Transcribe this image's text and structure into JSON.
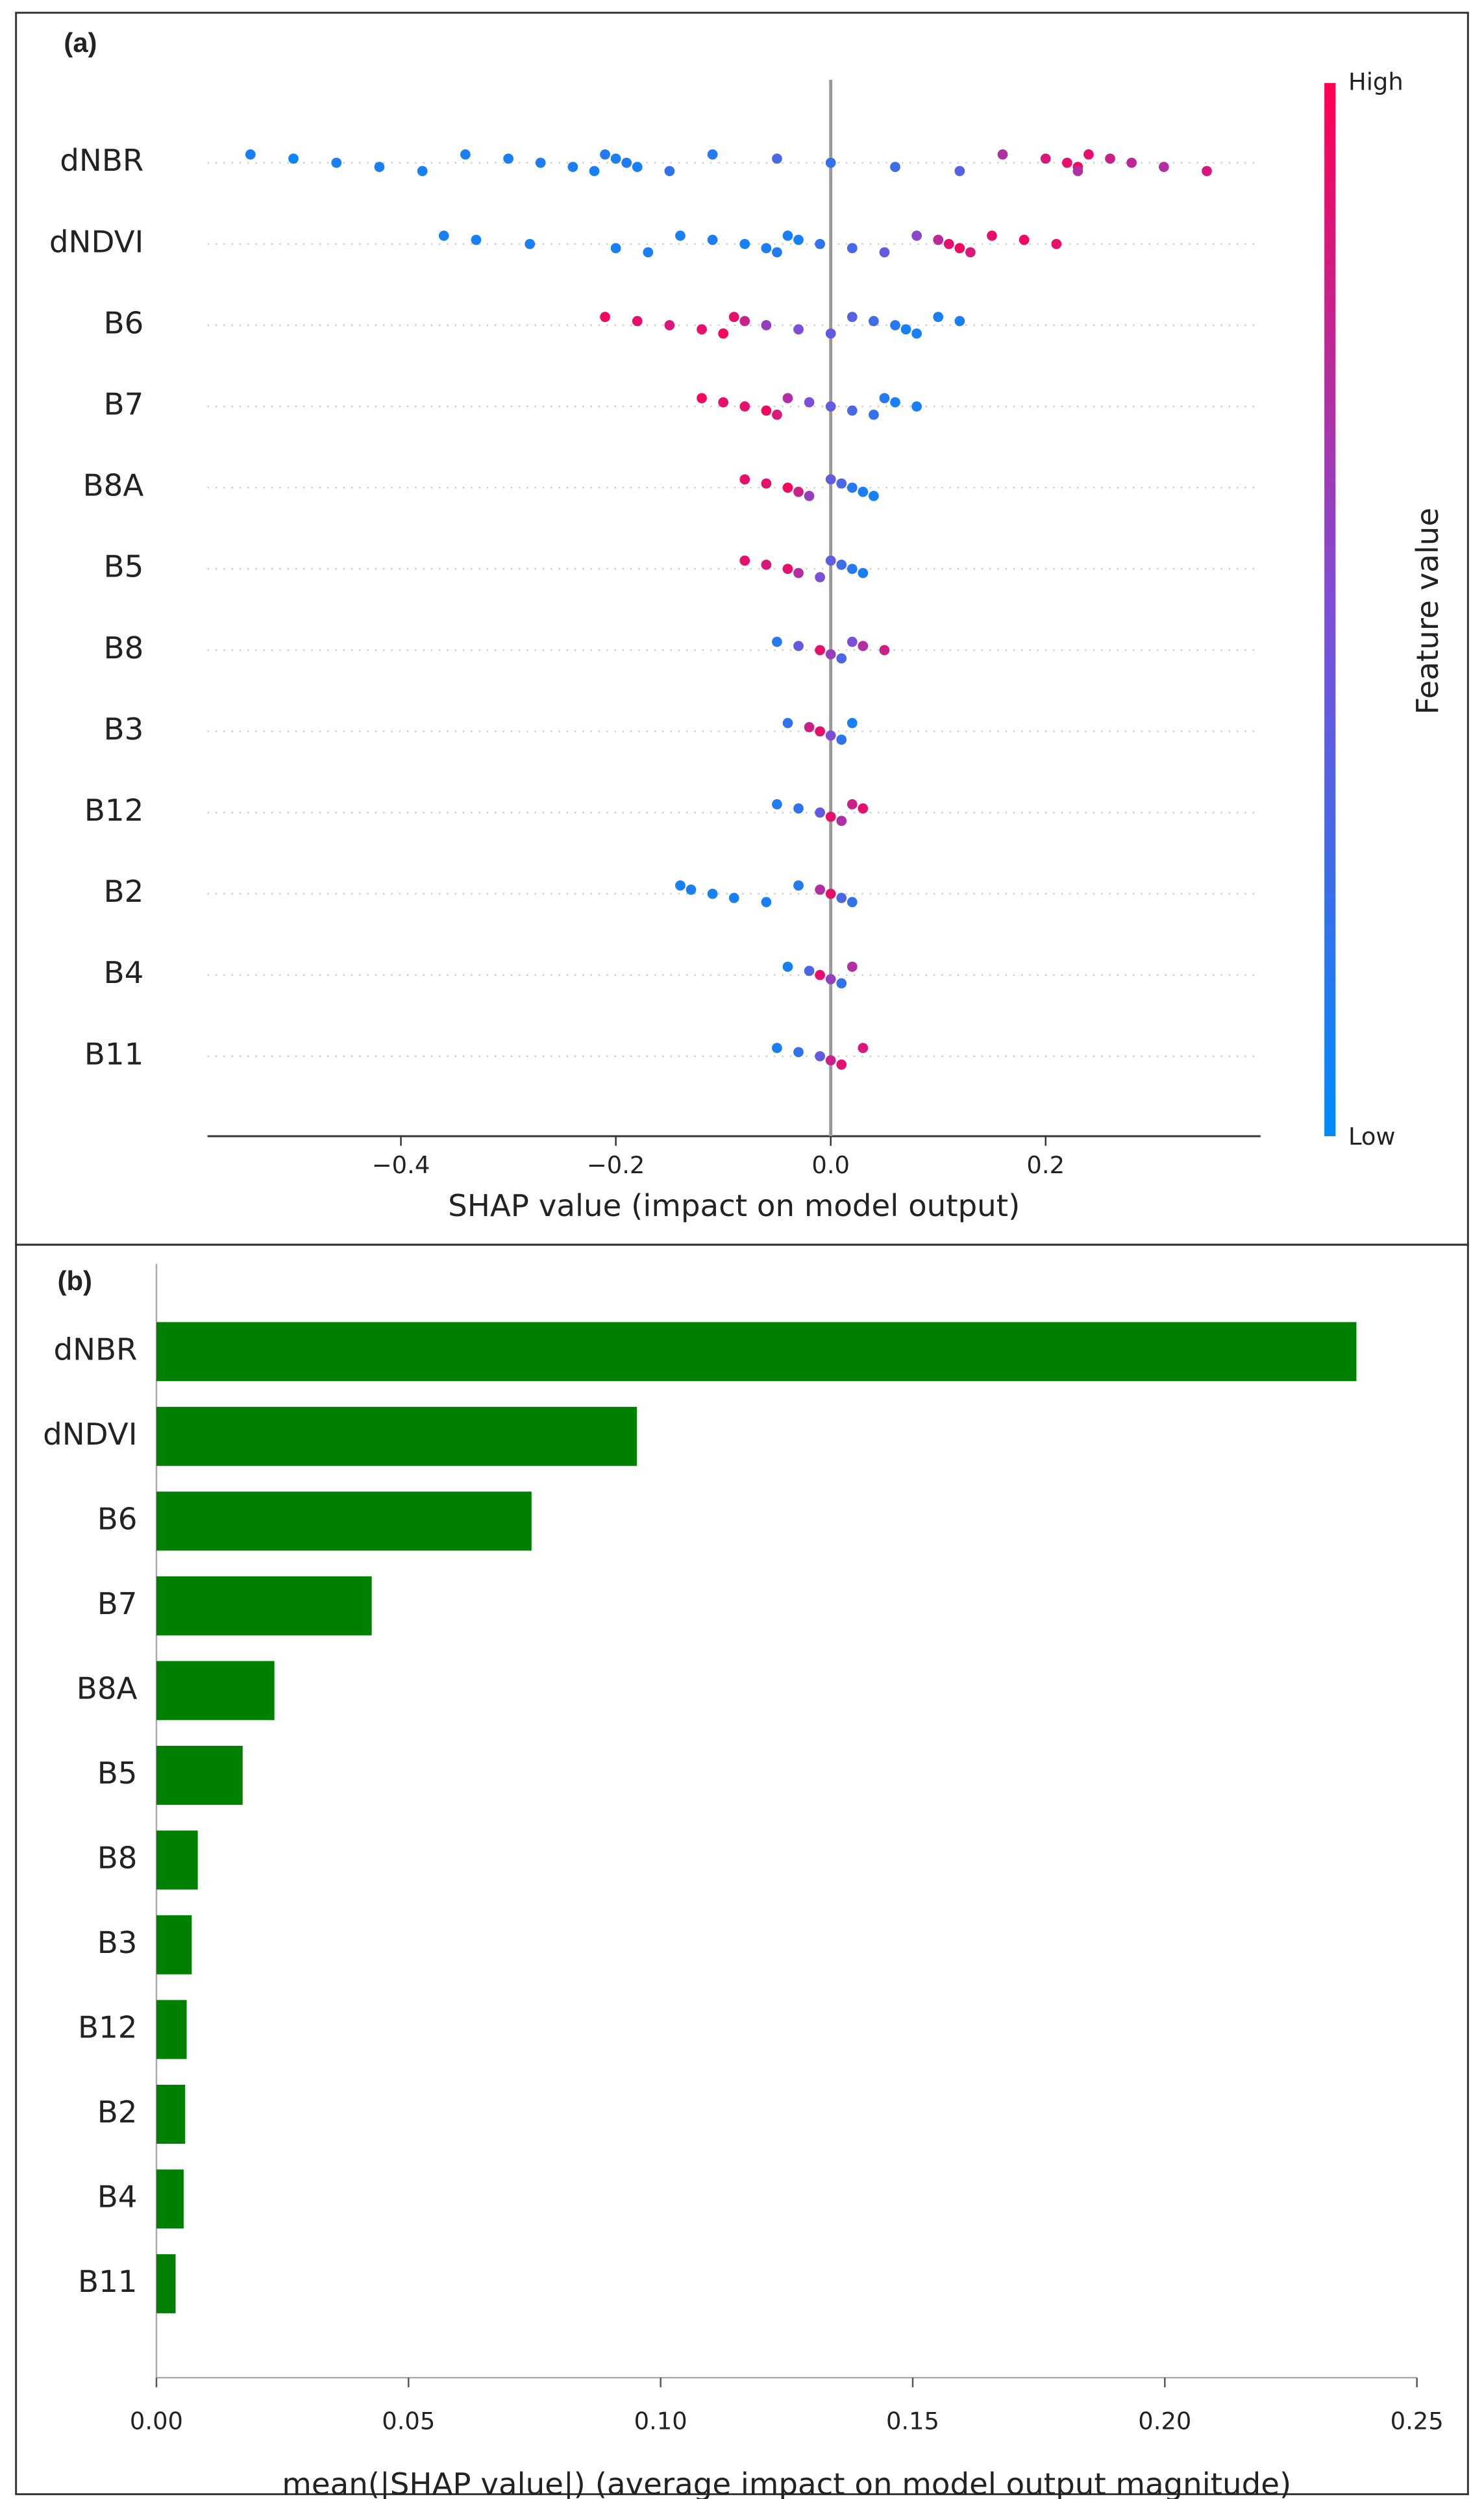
{
  "chart_data": [
    {
      "type": "beeswarm",
      "panel_label": "(a)",
      "categories": [
        "dNBR",
        "dNDVI",
        "B6",
        "B7",
        "B8A",
        "B5",
        "B8",
        "B3",
        "B12",
        "B2",
        "B4",
        "B11"
      ],
      "series": [
        {
          "name": "dNBR",
          "x": [
            -0.54,
            -0.5,
            -0.46,
            -0.42,
            -0.38,
            -0.34,
            -0.3,
            -0.27,
            -0.24,
            -0.22,
            -0.21,
            -0.2,
            -0.19,
            -0.18,
            -0.15,
            -0.11,
            -0.05,
            0.0,
            0.06,
            0.12,
            0.16,
            0.2,
            0.22,
            0.23,
            0.23,
            0.24,
            0.26,
            0.28,
            0.31,
            0.35
          ],
          "feature_values": [
            0.1,
            0.05,
            0.1,
            0.1,
            0.1,
            0.1,
            0.1,
            0.12,
            0.1,
            0.1,
            0.15,
            0.1,
            0.12,
            0.1,
            0.2,
            0.15,
            0.3,
            0.2,
            0.25,
            0.35,
            0.7,
            0.85,
            0.9,
            0.95,
            0.7,
            0.9,
            0.8,
            0.75,
            0.7,
            0.85
          ]
        },
        {
          "name": "dNDVI",
          "x": [
            -0.36,
            -0.33,
            -0.28,
            -0.2,
            -0.17,
            -0.14,
            -0.11,
            -0.08,
            -0.06,
            -0.05,
            -0.04,
            -0.03,
            -0.01,
            0.02,
            0.05,
            0.08,
            0.1,
            0.11,
            0.12,
            0.13,
            0.15,
            0.18,
            0.21
          ],
          "feature_values": [
            0.1,
            0.1,
            0.1,
            0.1,
            0.1,
            0.1,
            0.12,
            0.1,
            0.1,
            0.15,
            0.1,
            0.1,
            0.2,
            0.3,
            0.4,
            0.55,
            0.75,
            0.9,
            0.95,
            0.85,
            0.9,
            0.95,
            0.9
          ]
        },
        {
          "name": "B6",
          "x": [
            -0.21,
            -0.18,
            -0.15,
            -0.12,
            -0.1,
            -0.09,
            -0.08,
            -0.06,
            -0.03,
            0.0,
            0.02,
            0.04,
            0.06,
            0.07,
            0.08,
            0.1,
            0.12
          ],
          "feature_values": [
            0.95,
            0.9,
            0.85,
            0.9,
            0.95,
            0.9,
            0.8,
            0.6,
            0.5,
            0.4,
            0.35,
            0.25,
            0.15,
            0.1,
            0.1,
            0.1,
            0.1
          ]
        },
        {
          "name": "B7",
          "x": [
            -0.12,
            -0.1,
            -0.08,
            -0.06,
            -0.05,
            -0.04,
            -0.02,
            0.0,
            0.02,
            0.04,
            0.05,
            0.06,
            0.08
          ],
          "feature_values": [
            0.95,
            0.9,
            0.9,
            0.95,
            0.85,
            0.7,
            0.5,
            0.4,
            0.3,
            0.2,
            0.15,
            0.1,
            0.1
          ]
        },
        {
          "name": "B8A",
          "x": [
            -0.08,
            -0.06,
            -0.04,
            -0.03,
            -0.02,
            0.0,
            0.01,
            0.02,
            0.03,
            0.04
          ],
          "feature_values": [
            0.9,
            0.9,
            0.95,
            0.8,
            0.6,
            0.4,
            0.3,
            0.15,
            0.1,
            0.1
          ]
        },
        {
          "name": "B5",
          "x": [
            -0.08,
            -0.06,
            -0.04,
            -0.03,
            -0.01,
            0.0,
            0.01,
            0.02,
            0.03
          ],
          "feature_values": [
            0.9,
            0.85,
            0.9,
            0.7,
            0.5,
            0.4,
            0.25,
            0.15,
            0.1
          ]
        },
        {
          "name": "B8",
          "x": [
            -0.05,
            -0.03,
            -0.01,
            0.0,
            0.01,
            0.02,
            0.03,
            0.05
          ],
          "feature_values": [
            0.15,
            0.4,
            0.9,
            0.6,
            0.3,
            0.5,
            0.7,
            0.8
          ]
        },
        {
          "name": "B3",
          "x": [
            -0.04,
            -0.02,
            -0.01,
            0.0,
            0.01,
            0.02
          ],
          "feature_values": [
            0.2,
            0.8,
            0.9,
            0.5,
            0.2,
            0.1
          ]
        },
        {
          "name": "B12",
          "x": [
            -0.05,
            -0.03,
            -0.01,
            0.0,
            0.01,
            0.02,
            0.03
          ],
          "feature_values": [
            0.15,
            0.2,
            0.4,
            0.9,
            0.7,
            0.8,
            0.9
          ]
        },
        {
          "name": "B2",
          "x": [
            -0.14,
            -0.13,
            -0.11,
            -0.09,
            -0.06,
            -0.03,
            -0.01,
            0.0,
            0.01,
            0.02
          ],
          "feature_values": [
            0.1,
            0.1,
            0.1,
            0.1,
            0.1,
            0.15,
            0.7,
            0.9,
            0.3,
            0.2
          ]
        },
        {
          "name": "B4",
          "x": [
            -0.04,
            -0.02,
            -0.01,
            0.0,
            0.01,
            0.02
          ],
          "feature_values": [
            0.1,
            0.3,
            0.9,
            0.6,
            0.2,
            0.7
          ]
        },
        {
          "name": "B11",
          "x": [
            -0.05,
            -0.03,
            -0.01,
            0.0,
            0.01,
            0.03
          ],
          "feature_values": [
            0.1,
            0.2,
            0.4,
            0.8,
            0.9,
            0.85
          ]
        }
      ],
      "colormap": [
        "#008bfb",
        "#ff0051"
      ],
      "colorbar_label": "Feature value",
      "colorbar_high": "High",
      "colorbar_low": "Low",
      "xlabel": "SHAP value (impact on model output)",
      "xlim": [
        -0.58,
        0.4
      ],
      "xticks": [
        {
          "value": -0.4,
          "label": "−0.4"
        },
        {
          "value": -0.2,
          "label": "−0.2"
        },
        {
          "value": 0.0,
          "label": "0.0"
        },
        0.2
      ]
    },
    {
      "type": "bar",
      "orientation": "horizontal",
      "panel_label": "(b)",
      "categories": [
        "dNBR",
        "dNDVI",
        "B6",
        "B7",
        "B8A",
        "B5",
        "B8",
        "B3",
        "B12",
        "B2",
        "B4",
        "B11"
      ],
      "values": [
        0.238,
        0.0953,
        0.0744,
        0.0427,
        0.0234,
        0.0171,
        0.0082,
        0.007,
        0.006,
        0.0057,
        0.0054,
        0.0038
      ],
      "color": "#008000",
      "xlabel": "mean(|SHAP value|) (average impact on model output magnitude)",
      "xlim": [
        0,
        0.25
      ],
      "xticks": [
        {
          "value": 0,
          "label": "0.00"
        },
        0.05,
        {
          "value": 0.1,
          "label": "0.10"
        },
        0.15,
        {
          "value": 0.2,
          "label": "0.20"
        },
        0.25
      ]
    }
  ]
}
